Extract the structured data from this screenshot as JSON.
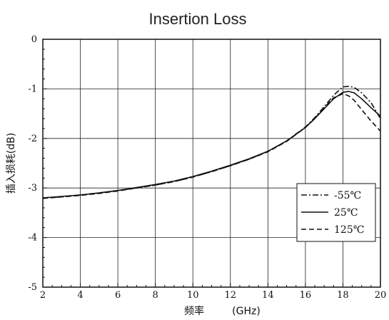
{
  "chart_data": {
    "type": "line",
    "title": "Insertion Loss",
    "xlabel": "频率",
    "xlabel_unit": "(GHz)",
    "ylabel": "插入损耗(dB)",
    "xlim": [
      2,
      20
    ],
    "ylim": [
      -5,
      0
    ],
    "xticks": [
      2,
      4,
      6,
      8,
      10,
      12,
      14,
      16,
      18,
      20
    ],
    "yticks": [
      0,
      -1,
      -2,
      -3,
      -4,
      -5
    ],
    "grid": true,
    "legend_position": "bottom-right",
    "series": [
      {
        "name": "-55℃",
        "style": "dashdot",
        "x": [
          2,
          3,
          4,
          5,
          6,
          7,
          8,
          9,
          10,
          11,
          12,
          13,
          14,
          15,
          16,
          16.5,
          17,
          17.5,
          18,
          18.3,
          18.6,
          19,
          19.5,
          20
        ],
        "y": [
          -3.2,
          -3.18,
          -3.14,
          -3.1,
          -3.05,
          -3.0,
          -2.94,
          -2.87,
          -2.78,
          -2.67,
          -2.55,
          -2.42,
          -2.26,
          -2.05,
          -1.77,
          -1.58,
          -1.36,
          -1.13,
          -0.96,
          -0.95,
          -0.97,
          -1.08,
          -1.28,
          -1.6
        ]
      },
      {
        "name": "25℃",
        "style": "solid",
        "x": [
          2,
          3,
          4,
          5,
          6,
          7,
          8,
          9,
          10,
          11,
          12,
          13,
          14,
          15,
          16,
          16.5,
          17,
          17.5,
          18,
          18.3,
          18.6,
          19,
          19.5,
          20
        ],
        "y": [
          -3.2,
          -3.17,
          -3.14,
          -3.1,
          -3.05,
          -2.99,
          -2.93,
          -2.86,
          -2.77,
          -2.66,
          -2.54,
          -2.41,
          -2.26,
          -2.05,
          -1.78,
          -1.6,
          -1.4,
          -1.2,
          -1.07,
          -1.05,
          -1.08,
          -1.2,
          -1.38,
          -1.55
        ]
      },
      {
        "name": "125℃",
        "style": "dashed",
        "x": [
          2,
          3,
          4,
          5,
          6,
          7,
          8,
          9,
          10,
          11,
          12,
          13,
          14,
          15,
          16,
          16.5,
          17,
          17.5,
          18,
          18.3,
          18.6,
          19,
          19.5,
          20
        ],
        "y": [
          -3.21,
          -3.18,
          -3.15,
          -3.11,
          -3.06,
          -3.0,
          -2.94,
          -2.87,
          -2.78,
          -2.67,
          -2.55,
          -2.42,
          -2.27,
          -2.06,
          -1.78,
          -1.6,
          -1.38,
          -1.18,
          -1.1,
          -1.14,
          -1.23,
          -1.42,
          -1.65,
          -1.85
        ]
      }
    ]
  }
}
